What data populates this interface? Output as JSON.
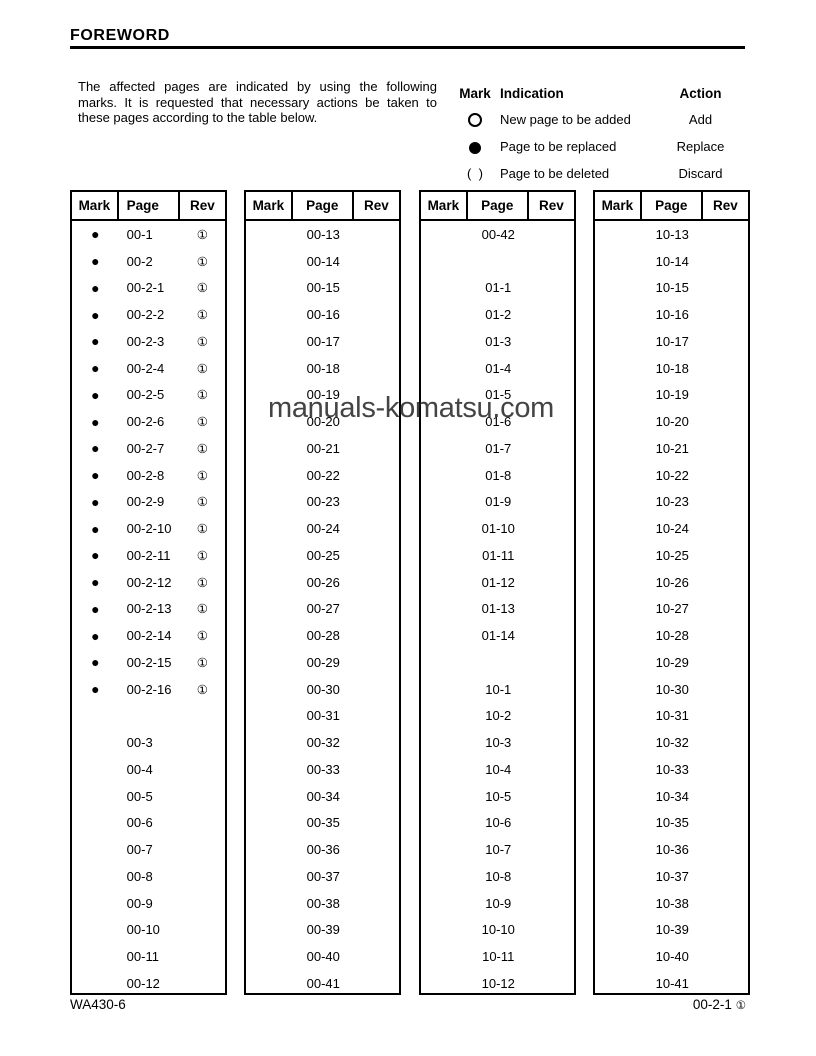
{
  "page": {
    "title": "FOREWORD",
    "watermark": "manuals-komatsu.com"
  },
  "intro": "The affected pages are indicated by using the following marks. It is requested that necessary actions be taken to these pages according to the table below.",
  "legend": {
    "headers": {
      "mark": "Mark",
      "indication": "Indication",
      "action": "Action"
    },
    "rows": [
      {
        "mark_icon": "open-circle",
        "indication": "New page to be added",
        "action": "Add"
      },
      {
        "mark_icon": "filled-circle",
        "indication": "Page to be replaced",
        "action": "Replace"
      },
      {
        "mark_icon": "parentheses",
        "mark_text": "(  )",
        "indication": "Page to be deleted",
        "action": "Discard"
      }
    ]
  },
  "table_headers": {
    "mark": "Mark",
    "page": "Page",
    "rev": "Rev"
  },
  "tables": [
    {
      "rows": [
        [
          "●",
          "00-1",
          "①"
        ],
        [
          "●",
          "00-2",
          "①"
        ],
        [
          "●",
          "00-2-1",
          "①"
        ],
        [
          "●",
          "00-2-2",
          "①"
        ],
        [
          "●",
          "00-2-3",
          "①"
        ],
        [
          "●",
          "00-2-4",
          "①"
        ],
        [
          "●",
          "00-2-5",
          "①"
        ],
        [
          "●",
          "00-2-6",
          "①"
        ],
        [
          "●",
          "00-2-7",
          "①"
        ],
        [
          "●",
          "00-2-8",
          "①"
        ],
        [
          "●",
          "00-2-9",
          "①"
        ],
        [
          "●",
          "00-2-10",
          "①"
        ],
        [
          "●",
          "00-2-11",
          "①"
        ],
        [
          "●",
          "00-2-12",
          "①"
        ],
        [
          "●",
          "00-2-13",
          "①"
        ],
        [
          "●",
          "00-2-14",
          "①"
        ],
        [
          "●",
          "00-2-15",
          "①"
        ],
        [
          "●",
          "00-2-16",
          "①"
        ],
        [
          "",
          "",
          ""
        ],
        [
          "",
          "00-3",
          ""
        ],
        [
          "",
          "00-4",
          ""
        ],
        [
          "",
          "00-5",
          ""
        ],
        [
          "",
          "00-6",
          ""
        ],
        [
          "",
          "00-7",
          ""
        ],
        [
          "",
          "00-8",
          ""
        ],
        [
          "",
          "00-9",
          ""
        ],
        [
          "",
          "00-10",
          ""
        ],
        [
          "",
          "00-11",
          ""
        ],
        [
          "",
          "00-12",
          ""
        ]
      ]
    },
    {
      "rows": [
        [
          "",
          "00-13",
          ""
        ],
        [
          "",
          "00-14",
          ""
        ],
        [
          "",
          "00-15",
          ""
        ],
        [
          "",
          "00-16",
          ""
        ],
        [
          "",
          "00-17",
          ""
        ],
        [
          "",
          "00-18",
          ""
        ],
        [
          "",
          "00-19",
          ""
        ],
        [
          "",
          "00-20",
          ""
        ],
        [
          "",
          "00-21",
          ""
        ],
        [
          "",
          "00-22",
          ""
        ],
        [
          "",
          "00-23",
          ""
        ],
        [
          "",
          "00-24",
          ""
        ],
        [
          "",
          "00-25",
          ""
        ],
        [
          "",
          "00-26",
          ""
        ],
        [
          "",
          "00-27",
          ""
        ],
        [
          "",
          "00-28",
          ""
        ],
        [
          "",
          "00-29",
          ""
        ],
        [
          "",
          "00-30",
          ""
        ],
        [
          "",
          "00-31",
          ""
        ],
        [
          "",
          "00-32",
          ""
        ],
        [
          "",
          "00-33",
          ""
        ],
        [
          "",
          "00-34",
          ""
        ],
        [
          "",
          "00-35",
          ""
        ],
        [
          "",
          "00-36",
          ""
        ],
        [
          "",
          "00-37",
          ""
        ],
        [
          "",
          "00-38",
          ""
        ],
        [
          "",
          "00-39",
          ""
        ],
        [
          "",
          "00-40",
          ""
        ],
        [
          "",
          "00-41",
          ""
        ]
      ]
    },
    {
      "rows": [
        [
          "",
          "00-42",
          ""
        ],
        [
          "",
          "",
          ""
        ],
        [
          "",
          "01-1",
          ""
        ],
        [
          "",
          "01-2",
          ""
        ],
        [
          "",
          "01-3",
          ""
        ],
        [
          "",
          "01-4",
          ""
        ],
        [
          "",
          "01-5",
          ""
        ],
        [
          "",
          "01-6",
          ""
        ],
        [
          "",
          "01-7",
          ""
        ],
        [
          "",
          "01-8",
          ""
        ],
        [
          "",
          "01-9",
          ""
        ],
        [
          "",
          "01-10",
          ""
        ],
        [
          "",
          "01-11",
          ""
        ],
        [
          "",
          "01-12",
          ""
        ],
        [
          "",
          "01-13",
          ""
        ],
        [
          "",
          "01-14",
          ""
        ],
        [
          "",
          "",
          ""
        ],
        [
          "",
          "10-1",
          ""
        ],
        [
          "",
          "10-2",
          ""
        ],
        [
          "",
          "10-3",
          ""
        ],
        [
          "",
          "10-4",
          ""
        ],
        [
          "",
          "10-5",
          ""
        ],
        [
          "",
          "10-6",
          ""
        ],
        [
          "",
          "10-7",
          ""
        ],
        [
          "",
          "10-8",
          ""
        ],
        [
          "",
          "10-9",
          ""
        ],
        [
          "",
          "10-10",
          ""
        ],
        [
          "",
          "10-11",
          ""
        ],
        [
          "",
          "10-12",
          ""
        ]
      ]
    },
    {
      "rows": [
        [
          "",
          "10-13",
          ""
        ],
        [
          "",
          "10-14",
          ""
        ],
        [
          "",
          "10-15",
          ""
        ],
        [
          "",
          "10-16",
          ""
        ],
        [
          "",
          "10-17",
          ""
        ],
        [
          "",
          "10-18",
          ""
        ],
        [
          "",
          "10-19",
          ""
        ],
        [
          "",
          "10-20",
          ""
        ],
        [
          "",
          "10-21",
          ""
        ],
        [
          "",
          "10-22",
          ""
        ],
        [
          "",
          "10-23",
          ""
        ],
        [
          "",
          "10-24",
          ""
        ],
        [
          "",
          "10-25",
          ""
        ],
        [
          "",
          "10-26",
          ""
        ],
        [
          "",
          "10-27",
          ""
        ],
        [
          "",
          "10-28",
          ""
        ],
        [
          "",
          "10-29",
          ""
        ],
        [
          "",
          "10-30",
          ""
        ],
        [
          "",
          "10-31",
          ""
        ],
        [
          "",
          "10-32",
          ""
        ],
        [
          "",
          "10-33",
          ""
        ],
        [
          "",
          "10-34",
          ""
        ],
        [
          "",
          "10-35",
          ""
        ],
        [
          "",
          "10-36",
          ""
        ],
        [
          "",
          "10-37",
          ""
        ],
        [
          "",
          "10-38",
          ""
        ],
        [
          "",
          "10-39",
          ""
        ],
        [
          "",
          "10-40",
          ""
        ],
        [
          "",
          "10-41",
          ""
        ]
      ]
    }
  ],
  "footer": {
    "left": "WA430-6",
    "right_page": "00-2-1",
    "right_rev": "①"
  }
}
